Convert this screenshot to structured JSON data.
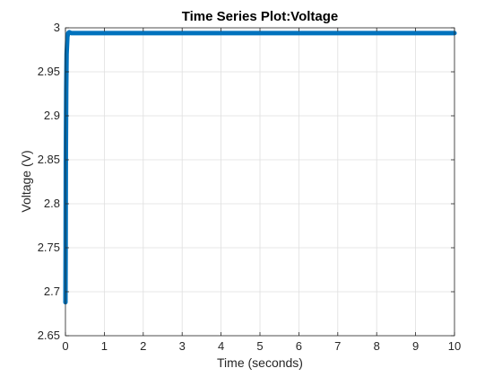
{
  "chart_data": {
    "type": "line",
    "title": "Time Series Plot:Voltage",
    "xlabel": "Time (seconds)",
    "ylabel": "Voltage (V)",
    "xlim": [
      0,
      10
    ],
    "ylim": [
      2.65,
      3.0
    ],
    "grid": true,
    "legend": "none",
    "x_ticks": [
      0,
      1,
      2,
      3,
      4,
      5,
      6,
      7,
      8,
      9,
      10
    ],
    "y_ticks": [
      2.65,
      2.7,
      2.75,
      2.8,
      2.85,
      2.9,
      2.95,
      3.0
    ],
    "x_tick_labels": [
      "0",
      "1",
      "2",
      "3",
      "4",
      "5",
      "6",
      "7",
      "8",
      "9",
      "10"
    ],
    "y_tick_labels": [
      "2.65",
      "2.7",
      "2.75",
      "2.8",
      "2.85",
      "2.9",
      "2.95",
      "3"
    ],
    "series": [
      {
        "color": "#0072BD",
        "x": [
          0,
          0.005,
          0.01,
          0.02,
          0.03,
          0.05,
          0.07,
          0.1,
          0.15,
          0.2,
          0.5,
          1,
          2,
          3,
          4,
          5,
          6,
          7,
          8,
          9,
          10
        ],
        "y": [
          2.688,
          2.75,
          2.85,
          2.93,
          2.97,
          2.99,
          2.994,
          2.995,
          2.994,
          2.994,
          2.994,
          2.994,
          2.994,
          2.994,
          2.994,
          2.994,
          2.994,
          2.994,
          2.994,
          2.994,
          2.994
        ]
      }
    ]
  }
}
